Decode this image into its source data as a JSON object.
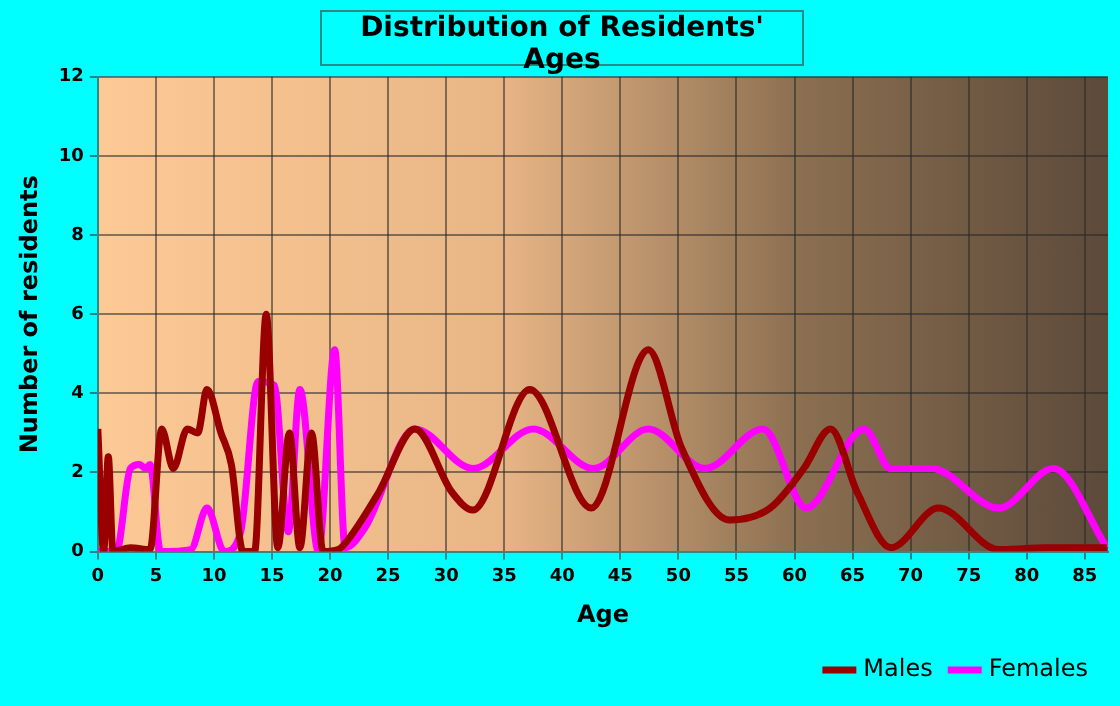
{
  "chart_data": {
    "type": "line",
    "title": "Distribution of Residents' Ages",
    "xlabel": "Age",
    "ylabel": "Number of residents",
    "xlim": [
      0,
      87
    ],
    "xticks": [
      0,
      5,
      10,
      15,
      20,
      25,
      30,
      35,
      40,
      45,
      50,
      55,
      60,
      65,
      70,
      75,
      80,
      85
    ],
    "ylim": [
      0,
      12
    ],
    "yticks": [
      0,
      2,
      4,
      6,
      8,
      10,
      12
    ],
    "grid": true,
    "legend": "bottom right",
    "marker": "none",
    "line_style": "solid",
    "series": [
      {
        "name": "Males",
        "color": "#990000",
        "x": [
          0,
          0.5,
          0.9,
          1.3,
          2.8,
          4.5,
          5.5,
          6.5,
          7.7,
          8.6,
          9.4,
          10.6,
          11.5,
          12.5,
          13.5,
          14.5,
          15.5,
          16.5,
          17.4,
          18.4,
          19.4,
          20.7,
          21.8,
          24.2,
          27.3,
          30.5,
          32.3,
          37.2,
          42.5,
          47.4,
          50.3,
          54.4,
          57.9,
          60.8,
          63.1,
          65.4,
          68.3,
          72.4,
          77.6,
          81.7,
          86.9
        ],
        "values": [
          3.1,
          0,
          2.4,
          0,
          0.1,
          0.05,
          3.1,
          2.1,
          3.1,
          3.0,
          4.1,
          3.0,
          2.2,
          0,
          0,
          6.0,
          0.1,
          3.0,
          0.1,
          3.0,
          0,
          0.05,
          0.4,
          1.5,
          3.1,
          1.5,
          1.05,
          4.1,
          1.1,
          5.1,
          2.6,
          0.8,
          1.1,
          2.1,
          3.1,
          1.5,
          0.1,
          1.1,
          0.05,
          0.1,
          0.1
        ]
      },
      {
        "name": "Females",
        "color": "#ff00ff",
        "x": [
          0,
          1.6,
          2.8,
          3.6,
          4.1,
          4.5,
          5.4,
          8,
          9.4,
          10.9,
          12.3,
          13.8,
          15.2,
          16.4,
          17.4,
          19,
          20.4,
          21.3,
          23,
          27.3,
          32.3,
          37.5,
          42.7,
          47.4,
          52.3,
          57.3,
          61,
          66,
          68.3,
          71.8,
          77.6,
          82.3,
          86.9
        ],
        "values": [
          0,
          0,
          2.1,
          2.2,
          2.1,
          2.2,
          0,
          0.05,
          1.1,
          0,
          0.5,
          4.3,
          4.2,
          0.5,
          4.1,
          0,
          5.1,
          0.1,
          0.6,
          3.1,
          2.1,
          3.1,
          2.1,
          3.1,
          2.1,
          3.1,
          1.1,
          3.1,
          2.1,
          2.1,
          1.1,
          2.1,
          0.1
        ]
      }
    ]
  }
}
